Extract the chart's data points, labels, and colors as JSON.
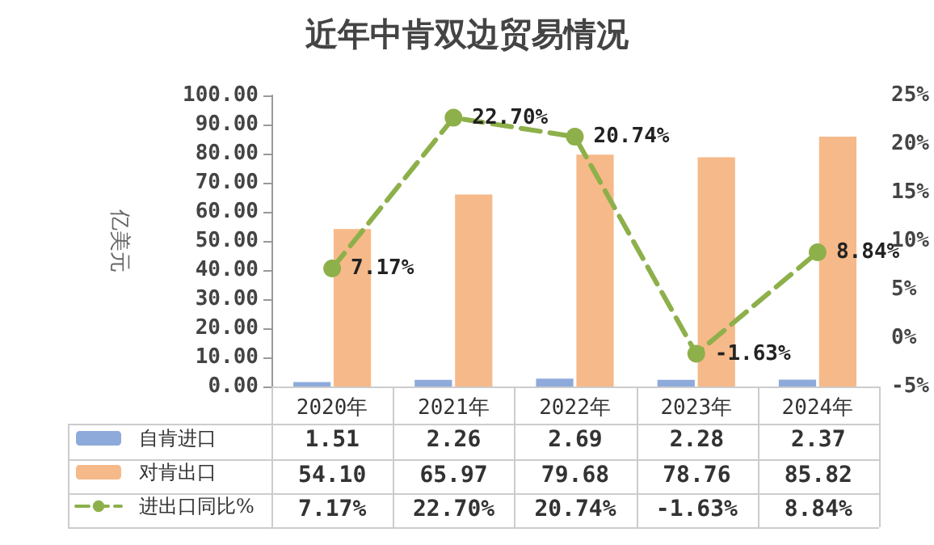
{
  "chart_data": {
    "type": "bar",
    "title": "近年中肯双边贸易情况",
    "ylabel": "亿美元",
    "categories": [
      "2020年",
      "2021年",
      "2022年",
      "2023年",
      "2024年"
    ],
    "series": [
      {
        "name": "自肯进口",
        "color": "#8eaadb",
        "values": [
          1.51,
          2.26,
          2.69,
          2.28,
          2.37
        ],
        "value_labels": [
          "1.51",
          "2.26",
          "2.69",
          "2.28",
          "2.37"
        ]
      },
      {
        "name": "对肯出口",
        "color": "#f6b989",
        "values": [
          54.1,
          65.97,
          79.68,
          78.76,
          85.82
        ],
        "value_labels": [
          "54.10",
          "65.97",
          "79.68",
          "78.76",
          "85.82"
        ]
      },
      {
        "name": "进出口同比%",
        "type": "line",
        "axis": "y2",
        "color": "#8db04a",
        "values": [
          7.17,
          22.7,
          20.74,
          -1.63,
          8.84
        ],
        "value_labels": [
          "7.17%",
          "22.70%",
          "20.74%",
          "-1.63%",
          "8.84%"
        ]
      }
    ],
    "ylim": [
      0,
      100
    ],
    "yticks": [
      {
        "value": 0,
        "label": "0.00"
      },
      {
        "value": 10,
        "label": "10.00"
      },
      {
        "value": 20,
        "label": "20.00"
      },
      {
        "value": 30,
        "label": "30.00"
      },
      {
        "value": 40,
        "label": "40.00"
      },
      {
        "value": 50,
        "label": "50.00"
      },
      {
        "value": 60,
        "label": "60.00"
      },
      {
        "value": 70,
        "label": "70.00"
      },
      {
        "value": 80,
        "label": "80.00"
      },
      {
        "value": 90,
        "label": "90.00"
      },
      {
        "value": 100,
        "label": "100.00"
      }
    ],
    "y2lim": [
      -5,
      25
    ],
    "y2ticks": [
      {
        "value": -5,
        "label": "-5%"
      },
      {
        "value": 0,
        "label": "0%"
      },
      {
        "value": 5,
        "label": "5%"
      },
      {
        "value": 10,
        "label": "10%"
      },
      {
        "value": 15,
        "label": "15%"
      },
      {
        "value": 20,
        "label": "20%"
      },
      {
        "value": 25,
        "label": "25%"
      }
    ],
    "marker": "circle",
    "line_style": "dashed",
    "legend": "bottom left"
  }
}
